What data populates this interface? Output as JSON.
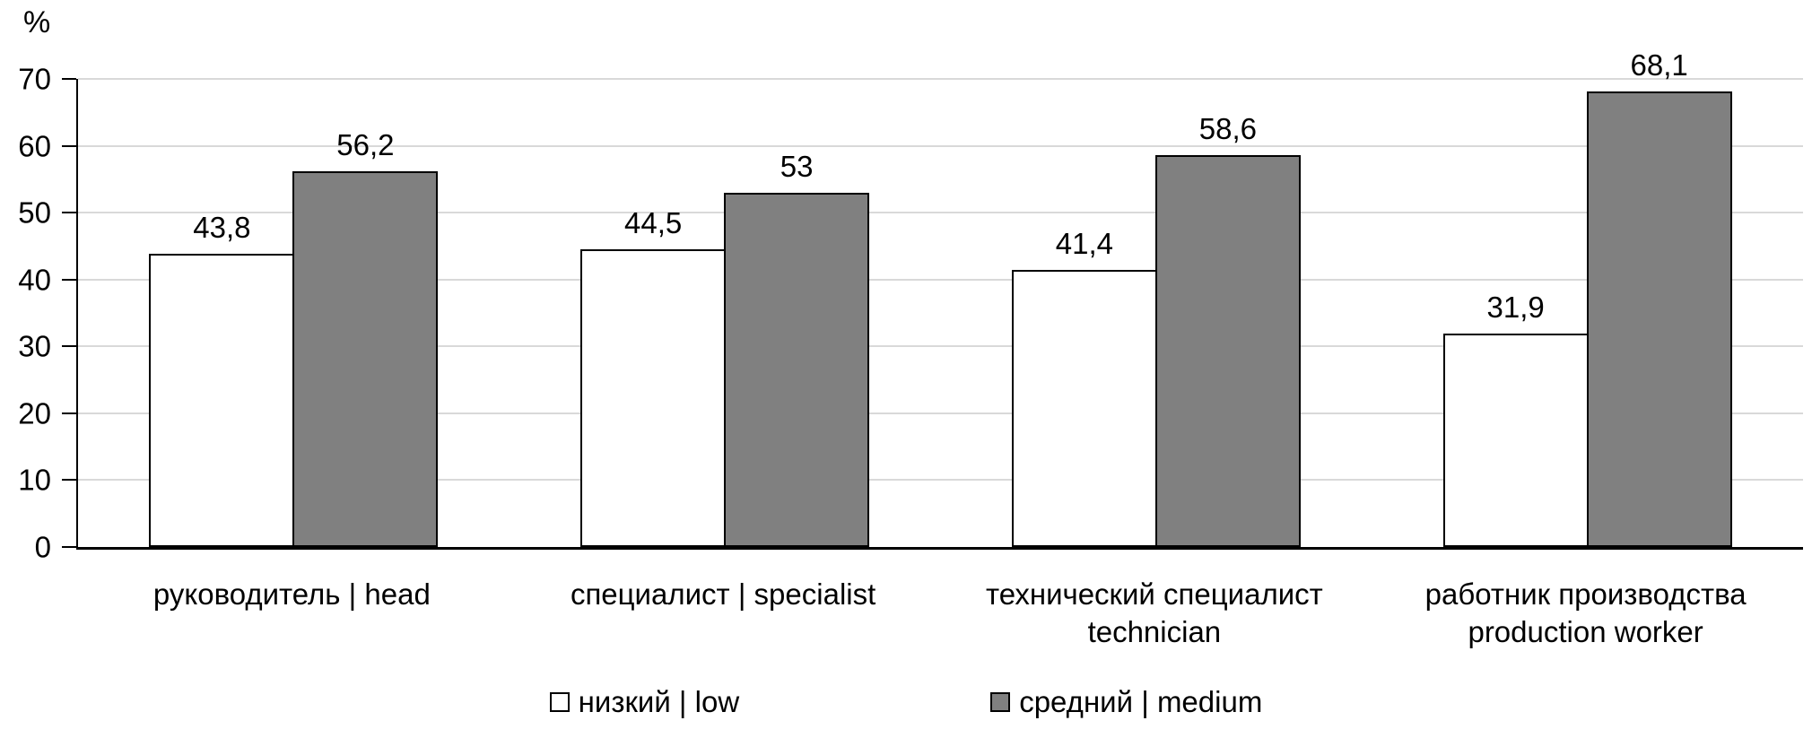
{
  "chart_data": {
    "type": "bar",
    "title": "",
    "ylabel": "%",
    "xlabel": "",
    "ymin": 0,
    "ymax": 70,
    "ytick_step": 10,
    "grid": true,
    "legend_position": "bottom",
    "categories": [
      {
        "line1": "руководитель | head",
        "line2": ""
      },
      {
        "line1": "специалист | specialist",
        "line2": ""
      },
      {
        "line1": "технический специалист",
        "line2": "technician"
      },
      {
        "line1": "работник производства",
        "line2": "production worker"
      }
    ],
    "series": [
      {
        "name": "низкий | low",
        "fill": "#ffffff",
        "values": [
          43.8,
          44.5,
          41.4,
          31.9
        ],
        "labels": [
          "43,8",
          "44,5",
          "41,4",
          "31,9"
        ]
      },
      {
        "name": "средний | medium",
        "fill": "#808080",
        "values": [
          56.2,
          53,
          58.6,
          68.1
        ],
        "labels": [
          "56,2",
          "53",
          "58,6",
          "68,1"
        ]
      }
    ]
  },
  "axis": {
    "percent_label": "%",
    "yticks": [
      "0",
      "10",
      "20",
      "30",
      "40",
      "50",
      "60",
      "70"
    ]
  },
  "legend": {
    "items": [
      {
        "label": "низкий | low",
        "swatch": "#ffffff"
      },
      {
        "label": "средний | medium",
        "swatch": "#808080"
      }
    ]
  },
  "colors": {
    "background": "#ffffff",
    "bar_border": "#000000",
    "gridline": "#d9d9d9",
    "axis": "#000000",
    "text": "#000000"
  }
}
